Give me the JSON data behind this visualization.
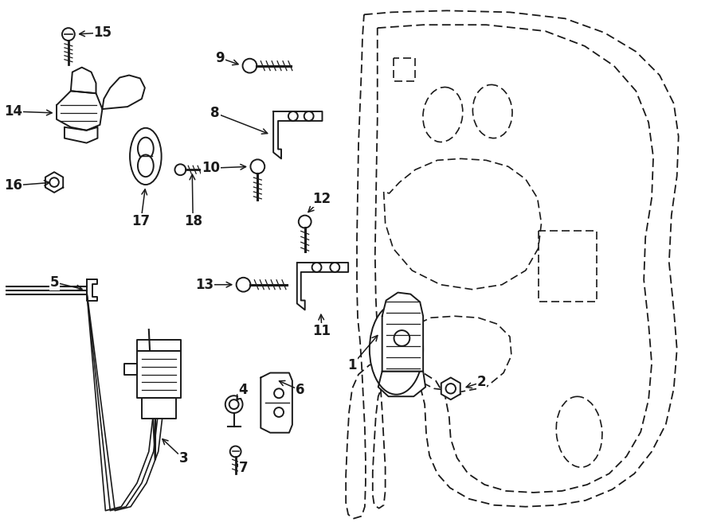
{
  "bg_color": "#ffffff",
  "line_color": "#1a1a1a",
  "fig_width": 9.0,
  "fig_height": 6.61,
  "dpi": 100,
  "font_size": 12
}
